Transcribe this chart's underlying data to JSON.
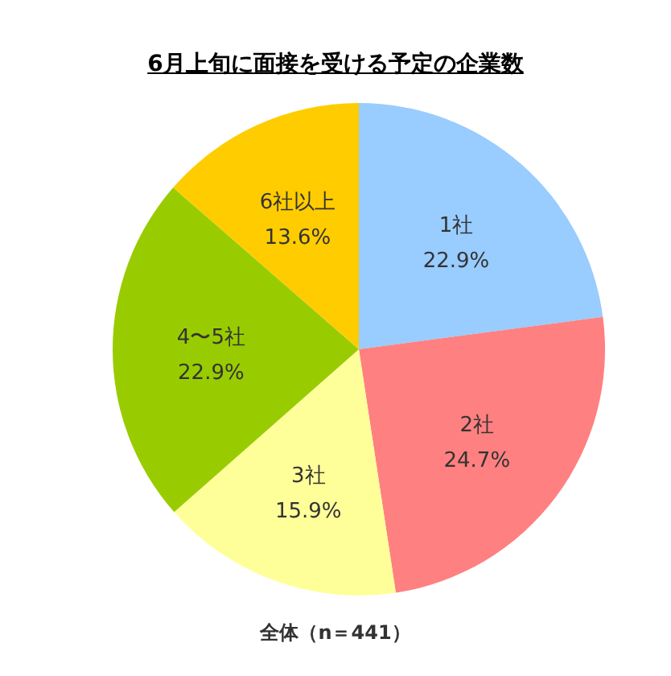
{
  "chart_data": {
    "type": "pie",
    "title": "6月上旬に面接を受ける予定の企業数",
    "categories": [
      "1社",
      "2社",
      "3社",
      "4〜5社",
      "6社以上"
    ],
    "values": [
      22.9,
      24.7,
      15.9,
      22.9,
      13.6
    ],
    "value_labels": [
      "22.9%",
      "24.7%",
      "15.9%",
      "22.9%",
      "13.6%"
    ],
    "colors": [
      "#99ccff",
      "#ff8080",
      "#ffff99",
      "#99cc00",
      "#ffcc00"
    ],
    "annotations": [
      "全体（n＝441）"
    ],
    "legend": false
  }
}
